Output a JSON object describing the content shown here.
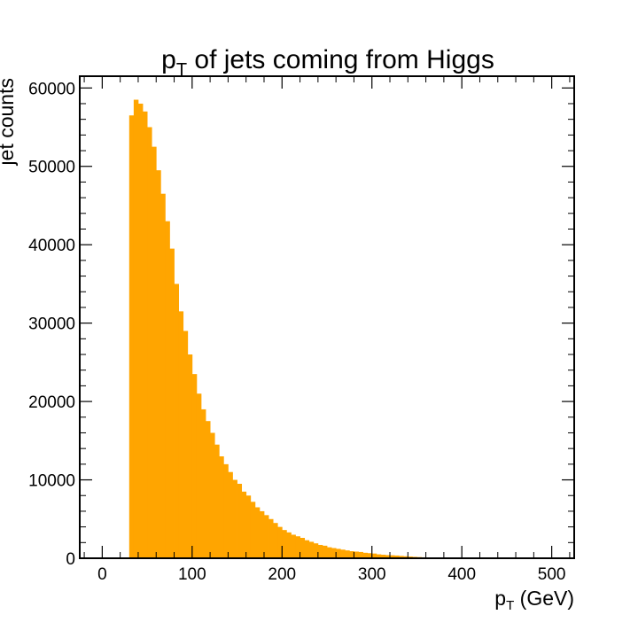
{
  "chart_data": {
    "type": "bar",
    "title": "p_T of jets coming from Higgs",
    "title_parts": {
      "main": "p",
      "sub": "T",
      "rest": " of jets coming from Higgs"
    },
    "xlabel": "p_T (GeV)",
    "xlabel_parts": {
      "main": "p",
      "sub": "T",
      "rest": " (GeV)"
    },
    "ylabel": "jet counts",
    "xlim": [
      -25,
      525
    ],
    "ylim": [
      0,
      61500
    ],
    "x_ticks": [
      0,
      100,
      200,
      300,
      400,
      500
    ],
    "y_ticks": [
      0,
      10000,
      20000,
      30000,
      40000,
      50000,
      60000
    ],
    "bin_width": 5,
    "bin_start": 30,
    "values": [
      56500,
      58500,
      58000,
      57000,
      55000,
      52500,
      49500,
      46500,
      43000,
      39500,
      35000,
      31500,
      29000,
      26000,
      23500,
      21000,
      19000,
      17500,
      16000,
      14500,
      13000,
      12000,
      11000,
      10000,
      9500,
      8500,
      8000,
      7200,
      6500,
      6000,
      5500,
      5000,
      4500,
      4000,
      3600,
      3300,
      3000,
      2800,
      2600,
      2300,
      2100,
      1900,
      1700,
      1600,
      1400,
      1300,
      1200,
      1100,
      1000,
      900,
      850,
      800,
      700,
      650,
      600,
      500,
      450,
      400,
      380,
      350,
      300,
      260,
      220,
      180,
      150,
      120,
      100,
      80,
      60,
      40,
      30,
      20,
      10,
      5,
      0
    ],
    "colors": {
      "bars": "#ffa500",
      "axis": "#000000",
      "background": "#ffffff"
    },
    "grid": false,
    "legend": "none"
  }
}
